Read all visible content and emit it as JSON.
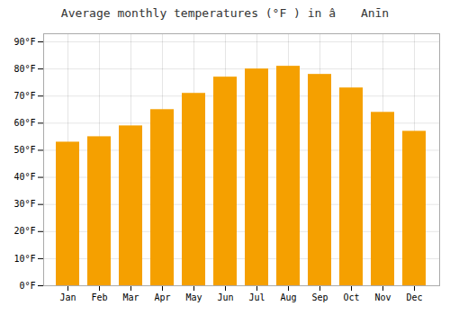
{
  "chart_data": {
    "type": "bar",
    "title": "Average monthly temperatures (°F ) in â Anīn",
    "categories": [
      "Jan",
      "Feb",
      "Mar",
      "Apr",
      "May",
      "Jun",
      "Jul",
      "Aug",
      "Sep",
      "Oct",
      "Nov",
      "Dec"
    ],
    "values": [
      53,
      55,
      59,
      65,
      71,
      77,
      80,
      81,
      78,
      73,
      64,
      57
    ],
    "color": "#F5A000",
    "ylim": [
      0,
      93
    ],
    "yticks": [
      {
        "value": 0,
        "label": "0°F"
      },
      {
        "value": 10,
        "label": "10°F"
      },
      {
        "value": 20,
        "label": "20°F"
      },
      {
        "value": 30,
        "label": "30°F"
      },
      {
        "value": 40,
        "label": "40°F"
      },
      {
        "value": 50,
        "label": "50°F"
      },
      {
        "value": 60,
        "label": "60°F"
      },
      {
        "value": 70,
        "label": "70°F"
      },
      {
        "value": 80,
        "label": "80°F"
      },
      {
        "value": 90,
        "label": "90°F"
      }
    ],
    "grid": true
  }
}
